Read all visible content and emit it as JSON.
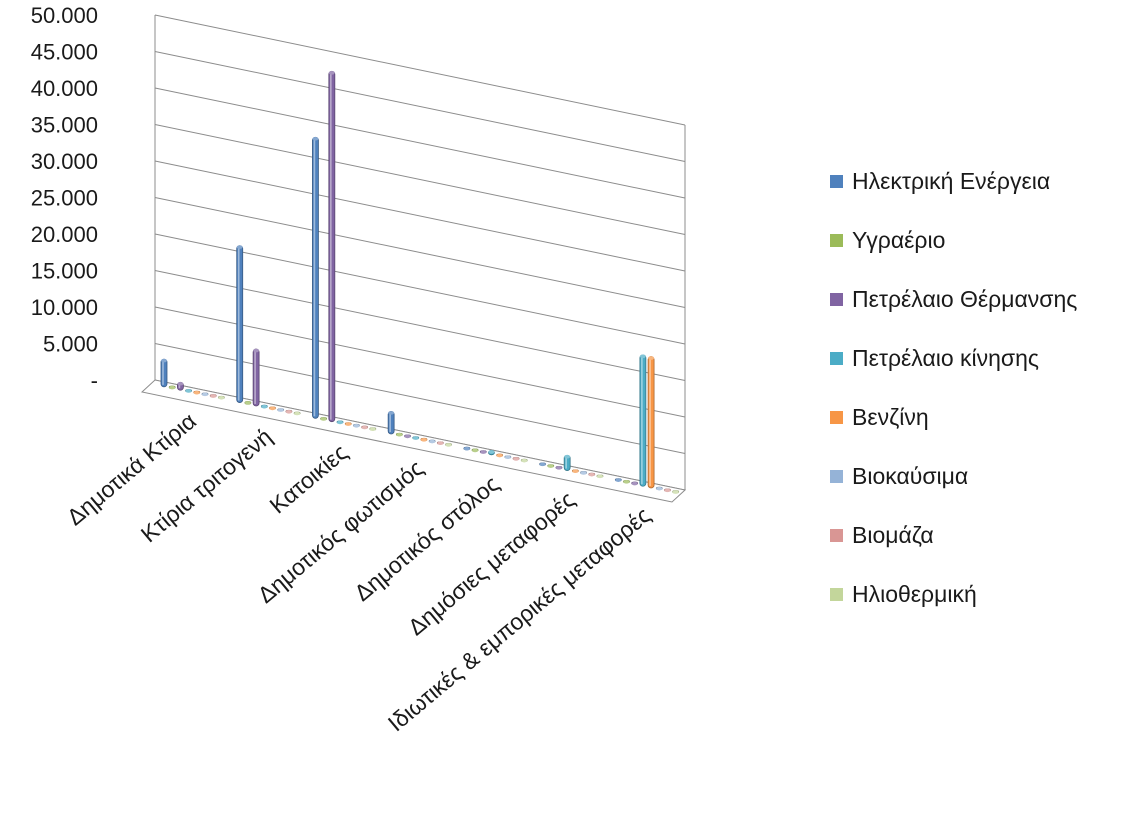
{
  "chart_data": {
    "type": "bar",
    "categories": [
      "Δημοτικά Κτίρια",
      "Κτίρια τριτογενή",
      "Κατοικίες",
      "Δημοτικός φωτισμός",
      "Δημοτικός στόλος",
      "Δημόσιες μεταφορές",
      "Ιδιωτικές & εμπορικές μεταφορές"
    ],
    "series": [
      {
        "name": "Ηλεκτρική Ενέργεια",
        "color": "#4F81BD",
        "values": [
          3800,
          21500,
          38500,
          3100,
          350,
          350,
          300
        ]
      },
      {
        "name": "Υγραέριο",
        "color": "#9BBB59",
        "values": [
          0,
          400,
          0,
          0,
          0,
          0,
          0
        ]
      },
      {
        "name": "Πετρέλαιο Θέρμανσης",
        "color": "#8064A2",
        "values": [
          1100,
          7800,
          48000,
          0,
          0,
          0,
          0
        ]
      },
      {
        "name": "Πετρέλαιο κίνησης",
        "color": "#4BACC6",
        "values": [
          0,
          0,
          0,
          0,
          600,
          2100,
          18000
        ]
      },
      {
        "name": "Βενζίνη",
        "color": "#F79646",
        "values": [
          0,
          0,
          0,
          0,
          0,
          0,
          18000
        ]
      },
      {
        "name": "Βιοκαύσιμα",
        "color": "#95B3D7",
        "values": [
          0,
          0,
          0,
          0,
          0,
          0,
          0
        ]
      },
      {
        "name": "Βιομάζα",
        "color": "#D99694",
        "values": [
          0,
          0,
          0,
          0,
          0,
          0,
          0
        ]
      },
      {
        "name": "Ηλιοθερμική",
        "color": "#C3D69B",
        "values": [
          0,
          0,
          0,
          0,
          0,
          0,
          0
        ]
      }
    ],
    "yticks": [
      {
        "value": 0,
        "label": "-"
      },
      {
        "value": 5000,
        "label": "5.000"
      },
      {
        "value": 10000,
        "label": "10.000"
      },
      {
        "value": 15000,
        "label": "15.000"
      },
      {
        "value": 20000,
        "label": "20.000"
      },
      {
        "value": 25000,
        "label": "25.000"
      },
      {
        "value": 30000,
        "label": "30.000"
      },
      {
        "value": 35000,
        "label": "35.000"
      },
      {
        "value": 40000,
        "label": "40.000"
      },
      {
        "value": 45000,
        "label": "45.000"
      },
      {
        "value": 50000,
        "label": "50.000"
      }
    ],
    "ylim": [
      0,
      50000
    ],
    "grid": true,
    "legend_position": "right",
    "projection": "3d"
  }
}
